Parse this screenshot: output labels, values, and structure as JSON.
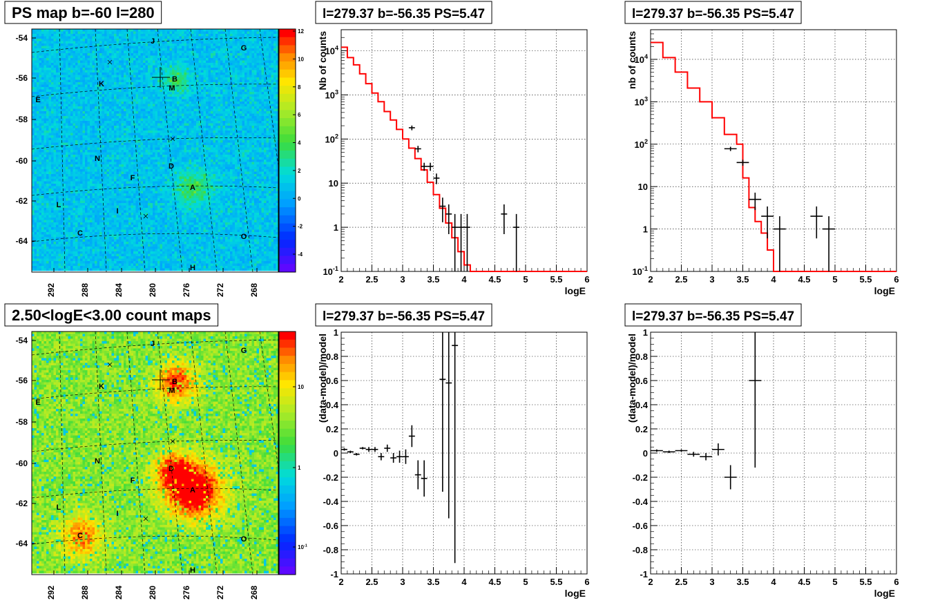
{
  "chart_data": [
    {
      "id": "ps-map",
      "type": "heatmap",
      "title": "PS map b=-60 l=280",
      "x_ticks": [
        "292",
        "288",
        "284",
        "280",
        "276",
        "272",
        "268"
      ],
      "y_ticks": [
        "-54",
        "-56",
        "-58",
        "-60",
        "-62",
        "-64"
      ],
      "colorbar_ticks": [
        "12",
        "10",
        "8",
        "6",
        "4",
        "2",
        "0",
        "-2",
        "-4"
      ],
      "colorbar_range": [
        -5,
        12
      ],
      "source_labels": [
        "J",
        "G",
        "B",
        "M",
        "K",
        "E",
        "D",
        "N",
        "F",
        "A",
        "L",
        "I",
        "C",
        "O",
        "H"
      ],
      "base_color": "#00bfff"
    },
    {
      "id": "count-map",
      "type": "heatmap",
      "title": "2.50<logE<3.00 count maps",
      "x_ticks": [
        "292",
        "288",
        "284",
        "280",
        "276",
        "272",
        "268"
      ],
      "y_ticks": [
        "-54",
        "-56",
        "-58",
        "-60",
        "-62",
        "-64"
      ],
      "colorbar_ticks": [
        "10",
        "1",
        "10^-1"
      ],
      "colorbar_scale": "log",
      "source_labels": [
        "J",
        "G",
        "B",
        "M",
        "K",
        "E",
        "D",
        "N",
        "F",
        "A",
        "L",
        "I",
        "C",
        "O",
        "H"
      ],
      "base_color": "#a8e63a"
    },
    {
      "id": "spectrum-1",
      "type": "line",
      "title": "l=279.37 b=-56.35 PS=5.47",
      "xlabel": "logE",
      "ylabel": "Nb of counts",
      "xlim": [
        2,
        6
      ],
      "ylim": [
        0.1,
        30000
      ],
      "yscale": "log",
      "x_ticks": [
        "2",
        "2.5",
        "3",
        "3.5",
        "4",
        "4.5",
        "5",
        "5.5",
        "6"
      ],
      "y_ticks": [
        "10^-1",
        "1",
        "10",
        "10^2",
        "10^3",
        "10^4"
      ],
      "grid": true,
      "model": [
        [
          2.0,
          12000
        ],
        [
          2.1,
          7000
        ],
        [
          2.2,
          4800
        ],
        [
          2.3,
          3000
        ],
        [
          2.4,
          1800
        ],
        [
          2.5,
          1100
        ],
        [
          2.6,
          700
        ],
        [
          2.7,
          420
        ],
        [
          2.8,
          270
        ],
        [
          2.9,
          165
        ],
        [
          3.0,
          100
        ],
        [
          3.1,
          62
        ],
        [
          3.2,
          36
        ],
        [
          3.3,
          20
        ],
        [
          3.4,
          10.5
        ],
        [
          3.5,
          5.5
        ],
        [
          3.6,
          2.7
        ],
        [
          3.7,
          1.25
        ],
        [
          3.8,
          0.58
        ],
        [
          3.9,
          0.28
        ],
        [
          4.0,
          0.14
        ],
        [
          4.1,
          0.1
        ],
        [
          4.2,
          0.1
        ],
        [
          6.0,
          0.1
        ]
      ],
      "data_points": [
        [
          3.15,
          180,
          22,
          0.05
        ],
        [
          3.25,
          60,
          10,
          0.05
        ],
        [
          3.35,
          24,
          5,
          0.05
        ],
        [
          3.45,
          24,
          5,
          0.05
        ],
        [
          3.55,
          13,
          3.5,
          0.05
        ],
        [
          3.65,
          3,
          1.7,
          0.05
        ],
        [
          3.75,
          2,
          1.3,
          0.05
        ],
        [
          3.85,
          1,
          1,
          0.05
        ],
        [
          3.95,
          1,
          1,
          0.05
        ],
        [
          4.05,
          1,
          1,
          0.05
        ],
        [
          4.65,
          2,
          1.3,
          0.05
        ],
        [
          4.85,
          1,
          1,
          0.05
        ]
      ]
    },
    {
      "id": "spectrum-2",
      "type": "line",
      "title": "l=279.37 b=-56.35 PS=5.47",
      "xlabel": "logE",
      "ylabel": "nb of counts",
      "xlim": [
        2,
        6
      ],
      "ylim": [
        0.1,
        50000
      ],
      "yscale": "log",
      "x_ticks": [
        "2",
        "2.5",
        "3",
        "3.5",
        "4",
        "4.5",
        "5",
        "5.5",
        "6"
      ],
      "y_ticks": [
        "10^-1",
        "1",
        "10",
        "10^2",
        "10^3",
        "10^4"
      ],
      "grid": true,
      "model": [
        [
          2.0,
          25000
        ],
        [
          2.2,
          11000
        ],
        [
          2.4,
          5000
        ],
        [
          2.6,
          2100
        ],
        [
          2.8,
          1000
        ],
        [
          3.0,
          420
        ],
        [
          3.2,
          170
        ],
        [
          3.4,
          100
        ],
        [
          3.5,
          16
        ],
        [
          3.6,
          3.2
        ],
        [
          3.7,
          1.5
        ],
        [
          3.8,
          0.8
        ],
        [
          3.9,
          0.32
        ],
        [
          4.0,
          0.1
        ],
        [
          4.2,
          0.1
        ],
        [
          6.0,
          0.1
        ]
      ],
      "data_points": [
        [
          3.3,
          78,
          9,
          0.1
        ],
        [
          3.5,
          37,
          6,
          0.1
        ],
        [
          3.7,
          5,
          2.2,
          0.1
        ],
        [
          3.9,
          2,
          1.4,
          0.1
        ],
        [
          4.1,
          1,
          1,
          0.1
        ],
        [
          4.7,
          2,
          1.4,
          0.1
        ],
        [
          4.9,
          1,
          1,
          0.1
        ]
      ]
    },
    {
      "id": "residual-1",
      "type": "scatter",
      "title": "l=279.37 b=-56.35 PS=5.47",
      "xlabel": "logE",
      "ylabel": "(data-model)/model",
      "xlim": [
        2,
        6
      ],
      "ylim": [
        -1,
        1
      ],
      "x_ticks": [
        "2",
        "2.5",
        "3",
        "3.5",
        "4",
        "4.5",
        "5",
        "5.5",
        "6"
      ],
      "y_ticks": [
        "-1",
        "-0.8",
        "-0.6",
        "-0.4",
        "-0.2",
        "0",
        "0.2",
        "0.4",
        "0.6",
        "0.8",
        "1"
      ],
      "grid": true,
      "points": [
        [
          2.05,
          0.03,
          0.01,
          0.05
        ],
        [
          2.15,
          0.01,
          0.01,
          0.05
        ],
        [
          2.25,
          -0.01,
          0.01,
          0.05
        ],
        [
          2.35,
          0.04,
          0.01,
          0.05
        ],
        [
          2.45,
          0.03,
          0.02,
          0.05
        ],
        [
          2.55,
          0.03,
          0.02,
          0.05
        ],
        [
          2.65,
          -0.03,
          0.03,
          0.05
        ],
        [
          2.75,
          0.04,
          0.03,
          0.05
        ],
        [
          2.85,
          -0.04,
          0.04,
          0.05
        ],
        [
          2.95,
          -0.03,
          0.05,
          0.05
        ],
        [
          3.05,
          -0.03,
          0.06,
          0.05
        ],
        [
          3.15,
          0.14,
          0.09,
          0.05
        ],
        [
          3.25,
          -0.18,
          0.12,
          0.05
        ],
        [
          3.35,
          -0.21,
          0.15,
          0.05
        ],
        [
          3.65,
          0.61,
          0.93,
          0.05
        ],
        [
          3.75,
          0.58,
          1.12,
          0.05
        ],
        [
          3.85,
          0.89,
          1.8,
          0.05
        ]
      ]
    },
    {
      "id": "residual-2",
      "type": "scatter",
      "title": "l=279.37 b=-56.35 PS=5.47",
      "xlabel": "logE",
      "ylabel": "(data-model)/model",
      "xlim": [
        2,
        6
      ],
      "ylim": [
        -1,
        1
      ],
      "x_ticks": [
        "2",
        "2.5",
        "3",
        "3.5",
        "4",
        "4.5",
        "5",
        "5.5",
        "6"
      ],
      "y_ticks": [
        "-1",
        "-0.8",
        "-0.6",
        "-0.4",
        "-0.2",
        "0",
        "0.2",
        "0.4",
        "0.6",
        "0.8",
        "1"
      ],
      "grid": true,
      "points": [
        [
          2.1,
          0.02,
          0.01,
          0.1
        ],
        [
          2.3,
          0.01,
          0.01,
          0.1
        ],
        [
          2.5,
          0.02,
          0.01,
          0.1
        ],
        [
          2.7,
          -0.01,
          0.02,
          0.1
        ],
        [
          2.9,
          -0.03,
          0.03,
          0.1
        ],
        [
          3.1,
          0.03,
          0.05,
          0.1
        ],
        [
          3.3,
          -0.2,
          0.1,
          0.1
        ],
        [
          3.7,
          0.6,
          0.72,
          0.1
        ]
      ]
    }
  ]
}
